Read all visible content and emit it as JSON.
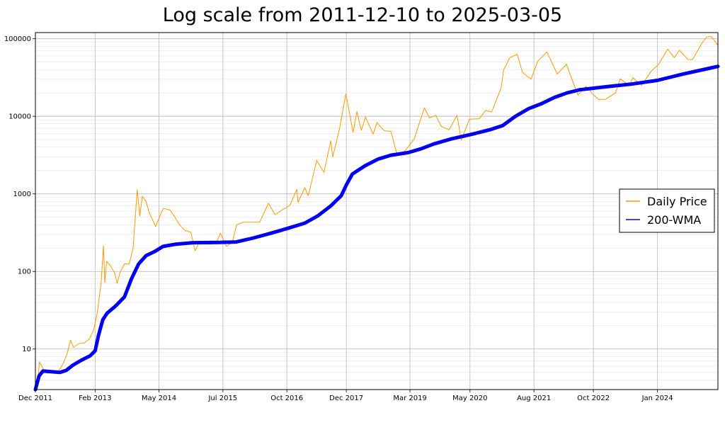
{
  "chart_data": {
    "type": "line",
    "title": "Log scale from 2011-12-10 to 2025-03-05",
    "xlabel": "",
    "ylabel": "",
    "y_scale": "log",
    "ylim": [
      3,
      120000
    ],
    "xlim": [
      "2011-12-10",
      "2025-03-05"
    ],
    "grid": true,
    "legend_position": "center-right",
    "x_ticks": [
      {
        "date": "2011-12-10",
        "label": "Dec 2011"
      },
      {
        "date": "2013-02-05",
        "label": "Feb 2013"
      },
      {
        "date": "2014-05-03",
        "label": "May 2014"
      },
      {
        "date": "2015-07-30",
        "label": "Jul 2015"
      },
      {
        "date": "2016-10-25",
        "label": "Oct 2016"
      },
      {
        "date": "2017-12-20",
        "label": "Dec 2017"
      },
      {
        "date": "2019-03-16",
        "label": "Mar 2019"
      },
      {
        "date": "2020-05-14",
        "label": "May 2020"
      },
      {
        "date": "2021-08-10",
        "label": "Aug 2021"
      },
      {
        "date": "2022-10-05",
        "label": "Oct 2022"
      },
      {
        "date": "2024-01-02",
        "label": "Jan 2024"
      }
    ],
    "y_ticks": [
      {
        "value": 10,
        "label": "10"
      },
      {
        "value": 100,
        "label": "100"
      },
      {
        "value": 1000,
        "label": "1000"
      },
      {
        "value": 10000,
        "label": "10000"
      },
      {
        "value": 100000,
        "label": "100000"
      }
    ],
    "series": [
      {
        "name": "Daily Price",
        "color": "#ff9900",
        "style": "thin-line",
        "points": [
          [
            "2011-12-10",
            3.0
          ],
          [
            "2011-12-28",
            4.2
          ],
          [
            "2012-01-08",
            6.8
          ],
          [
            "2012-02-05",
            5.5
          ],
          [
            "2012-03-01",
            4.9
          ],
          [
            "2012-04-15",
            5.0
          ],
          [
            "2012-05-20",
            5.1
          ],
          [
            "2012-06-20",
            6.3
          ],
          [
            "2012-07-20",
            8.5
          ],
          [
            "2012-08-15",
            13.0
          ],
          [
            "2012-09-05",
            10.5
          ],
          [
            "2012-10-15",
            11.8
          ],
          [
            "2012-11-20",
            12.0
          ],
          [
            "2012-12-25",
            13.4
          ],
          [
            "2013-01-25",
            17.5
          ],
          [
            "2013-02-20",
            29.0
          ],
          [
            "2013-03-20",
            72.0
          ],
          [
            "2013-04-05",
            215.0
          ],
          [
            "2013-04-15",
            72.0
          ],
          [
            "2013-04-28",
            135.0
          ],
          [
            "2013-05-20",
            122.0
          ],
          [
            "2013-06-25",
            95.0
          ],
          [
            "2013-07-10",
            70.0
          ],
          [
            "2013-08-01",
            98.0
          ],
          [
            "2013-09-01",
            125.0
          ],
          [
            "2013-10-05",
            125.0
          ],
          [
            "2013-11-01",
            200.0
          ],
          [
            "2013-11-30",
            1130.0
          ],
          [
            "2013-12-18",
            520.0
          ],
          [
            "2014-01-05",
            930.0
          ],
          [
            "2014-02-01",
            800.0
          ],
          [
            "2014-02-25",
            560.0
          ],
          [
            "2014-04-10",
            380.0
          ],
          [
            "2014-05-20",
            580.0
          ],
          [
            "2014-06-05",
            650.0
          ],
          [
            "2014-07-20",
            620.0
          ],
          [
            "2014-08-25",
            500.0
          ],
          [
            "2014-09-25",
            400.0
          ],
          [
            "2014-11-01",
            340.0
          ],
          [
            "2014-12-15",
            320.0
          ],
          [
            "2015-01-14",
            185.0
          ],
          [
            "2015-02-15",
            240.0
          ],
          [
            "2015-04-15",
            225.0
          ],
          [
            "2015-06-10",
            230.0
          ],
          [
            "2015-07-12",
            310.0
          ],
          [
            "2015-08-25",
            210.0
          ],
          [
            "2015-10-05",
            240.0
          ],
          [
            "2015-11-04",
            400.0
          ],
          [
            "2015-12-20",
            430.0
          ],
          [
            "2016-02-20",
            430.0
          ],
          [
            "2016-04-15",
            430.0
          ],
          [
            "2016-06-17",
            760.0
          ],
          [
            "2016-08-02",
            540.0
          ],
          [
            "2016-09-15",
            610.0
          ],
          [
            "2016-11-15",
            710.0
          ],
          [
            "2017-01-04",
            1140.0
          ],
          [
            "2017-01-12",
            780.0
          ],
          [
            "2017-03-01",
            1200.0
          ],
          [
            "2017-03-25",
            940.0
          ],
          [
            "2017-05-25",
            2700.0
          ],
          [
            "2017-07-15",
            1900.0
          ],
          [
            "2017-09-01",
            4800.0
          ],
          [
            "2017-09-15",
            3000.0
          ],
          [
            "2017-11-01",
            6800.0
          ],
          [
            "2017-12-17",
            19500.0
          ],
          [
            "2018-02-06",
            6200.0
          ],
          [
            "2018-03-05",
            11500.0
          ],
          [
            "2018-04-05",
            6600.0
          ],
          [
            "2018-05-05",
            9800.0
          ],
          [
            "2018-06-28",
            5900.0
          ],
          [
            "2018-07-25",
            8300.0
          ],
          [
            "2018-09-15",
            6500.0
          ],
          [
            "2018-11-01",
            6400.0
          ],
          [
            "2018-12-15",
            3200.0
          ],
          [
            "2019-02-10",
            3600.0
          ],
          [
            "2019-04-15",
            5100.0
          ],
          [
            "2019-06-26",
            12900.0
          ],
          [
            "2019-08-01",
            9500.0
          ],
          [
            "2019-09-15",
            10300.0
          ],
          [
            "2019-10-24",
            7400.0
          ],
          [
            "2019-12-18",
            6700.0
          ],
          [
            "2020-02-12",
            10300.0
          ],
          [
            "2020-03-13",
            4900.0
          ],
          [
            "2020-05-10",
            9200.0
          ],
          [
            "2020-07-20",
            9300.0
          ],
          [
            "2020-09-01",
            11900.0
          ],
          [
            "2020-10-15",
            11400.0
          ],
          [
            "2020-12-20",
            23000.0
          ],
          [
            "2021-01-08",
            40000.0
          ],
          [
            "2021-02-20",
            57000.0
          ],
          [
            "2021-04-14",
            63000.0
          ],
          [
            "2021-05-20",
            37000.0
          ],
          [
            "2021-07-20",
            30000.0
          ],
          [
            "2021-09-05",
            51000.0
          ],
          [
            "2021-11-10",
            67500.0
          ],
          [
            "2022-01-22",
            35000.0
          ],
          [
            "2022-03-28",
            47000.0
          ],
          [
            "2022-05-12",
            28000.0
          ],
          [
            "2022-06-18",
            18800.0
          ],
          [
            "2022-08-14",
            24400.0
          ],
          [
            "2022-09-30",
            19400.0
          ],
          [
            "2022-11-10",
            16500.0
          ],
          [
            "2022-12-31",
            16600.0
          ],
          [
            "2023-03-10",
            20000.0
          ],
          [
            "2023-04-14",
            30400.0
          ],
          [
            "2023-06-15",
            25100.0
          ],
          [
            "2023-07-13",
            31400.0
          ],
          [
            "2023-09-11",
            25000.0
          ],
          [
            "2023-11-15",
            37500.0
          ],
          [
            "2024-01-10",
            46800.0
          ],
          [
            "2024-03-14",
            73000.0
          ],
          [
            "2024-05-01",
            57000.0
          ],
          [
            "2024-06-05",
            71000.0
          ],
          [
            "2024-08-05",
            54000.0
          ],
          [
            "2024-09-06",
            53900.0
          ],
          [
            "2024-11-12",
            88000.0
          ],
          [
            "2024-12-17",
            106000.0
          ],
          [
            "2025-01-20",
            106000.0
          ],
          [
            "2025-02-05",
            96000.0
          ],
          [
            "2025-02-28",
            84000.0
          ],
          [
            "2025-03-05",
            88000.0
          ]
        ]
      },
      {
        "name": "200-WMA",
        "color": "#0000ee",
        "style": "thick-line",
        "points": [
          [
            "2011-12-10",
            3.0
          ],
          [
            "2012-01-05",
            4.5
          ],
          [
            "2012-02-01",
            5.2
          ],
          [
            "2012-04-01",
            5.1
          ],
          [
            "2012-06-01",
            5.0
          ],
          [
            "2012-07-15",
            5.3
          ],
          [
            "2012-09-01",
            6.2
          ],
          [
            "2012-11-01",
            7.2
          ],
          [
            "2013-01-01",
            8.2
          ],
          [
            "2013-02-05",
            9.5
          ],
          [
            "2013-03-01",
            15.0
          ],
          [
            "2013-04-01",
            24.0
          ],
          [
            "2013-05-01",
            29.0
          ],
          [
            "2013-07-01",
            36.0
          ],
          [
            "2013-09-01",
            47.0
          ],
          [
            "2013-10-20",
            80.0
          ],
          [
            "2013-12-10",
            125.0
          ],
          [
            "2014-02-01",
            160.0
          ],
          [
            "2014-04-01",
            180.0
          ],
          [
            "2014-06-01",
            210.0
          ],
          [
            "2014-09-01",
            225.0
          ],
          [
            "2015-01-01",
            235.0
          ],
          [
            "2015-07-01",
            237.0
          ],
          [
            "2015-11-01",
            240.0
          ],
          [
            "2016-03-01",
            270.0
          ],
          [
            "2016-07-01",
            310.0
          ],
          [
            "2016-11-01",
            360.0
          ],
          [
            "2017-03-01",
            420.0
          ],
          [
            "2017-06-01",
            520.0
          ],
          [
            "2017-09-01",
            700.0
          ],
          [
            "2017-11-15",
            950.0
          ],
          [
            "2017-12-20",
            1300.0
          ],
          [
            "2018-02-01",
            1800.0
          ],
          [
            "2018-05-01",
            2300.0
          ],
          [
            "2018-08-01",
            2800.0
          ],
          [
            "2018-11-01",
            3150.0
          ],
          [
            "2019-03-01",
            3400.0
          ],
          [
            "2019-06-01",
            3800.0
          ],
          [
            "2019-09-01",
            4400.0
          ],
          [
            "2020-01-01",
            5100.0
          ],
          [
            "2020-06-01",
            5900.0
          ],
          [
            "2020-10-01",
            6700.0
          ],
          [
            "2021-01-01",
            7600.0
          ],
          [
            "2021-04-01",
            10000.0
          ],
          [
            "2021-07-01",
            12500.0
          ],
          [
            "2021-10-01",
            14500.0
          ],
          [
            "2022-01-01",
            17500.0
          ],
          [
            "2022-04-01",
            20000.0
          ],
          [
            "2022-07-01",
            22000.0
          ],
          [
            "2022-10-01",
            23000.0
          ],
          [
            "2023-01-01",
            24000.0
          ],
          [
            "2023-07-01",
            26000.0
          ],
          [
            "2024-01-01",
            29000.0
          ],
          [
            "2024-07-01",
            35000.0
          ],
          [
            "2025-01-01",
            41500.0
          ],
          [
            "2025-03-05",
            44000.0
          ]
        ]
      }
    ]
  }
}
